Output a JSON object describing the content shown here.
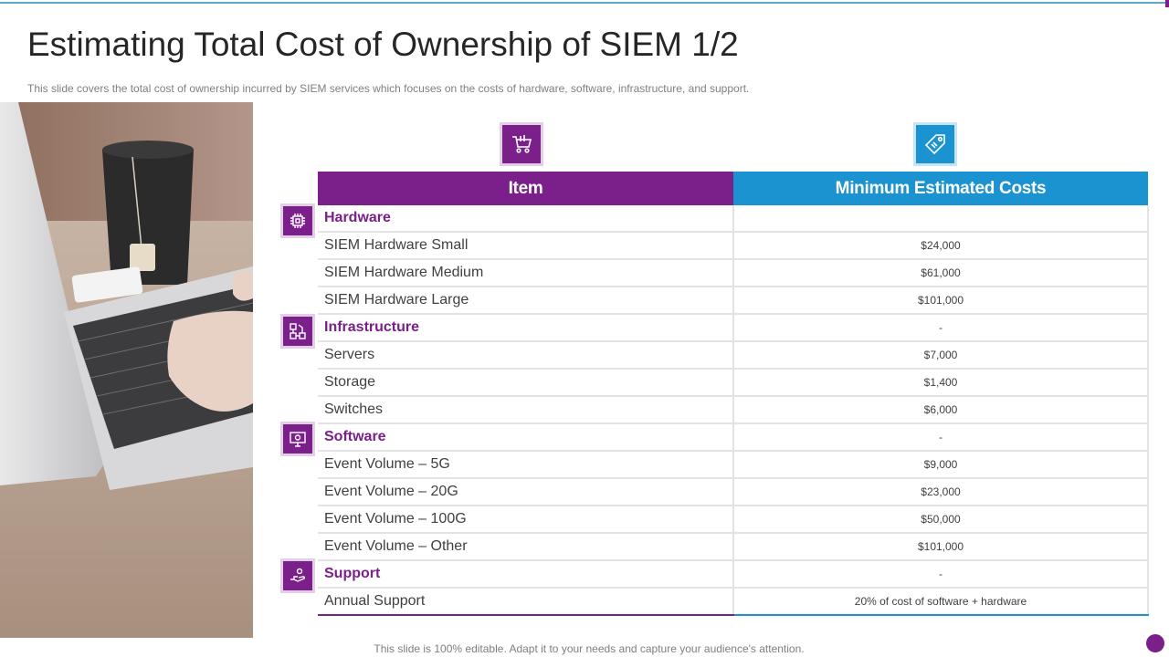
{
  "slide": {
    "title": "Estimating Total Cost of Ownership of SIEM 1/2",
    "subtitle": "This slide covers the total cost of ownership incurred by SIEM services which focuses on the costs of hardware, software, infrastructure, and support.",
    "footer": "This slide is 100% editable. Adapt it to your needs and capture your audience's attention."
  },
  "colors": {
    "purple": "#7b1f8a",
    "blue": "#1c93d1",
    "accent_line": "#5fa8c8"
  },
  "header_icons": [
    "shopping-cart-icon",
    "price-tag-icon"
  ],
  "table": {
    "headers": [
      "Item",
      "Minimum Estimated Costs"
    ],
    "categories": [
      {
        "label": "Hardware",
        "icon": "chip-icon",
        "value": "",
        "rows": [
          {
            "item": "SIEM Hardware Small",
            "cost": "$24,000"
          },
          {
            "item": "SIEM Hardware Medium",
            "cost": "$61,000"
          },
          {
            "item": "SIEM Hardware Large",
            "cost": "$101,000"
          }
        ]
      },
      {
        "label": "Infrastructure",
        "icon": "network-icon",
        "value": "-",
        "rows": [
          {
            "item": "Servers",
            "cost": "$7,000"
          },
          {
            "item": "Storage",
            "cost": "$1,400"
          },
          {
            "item": "Switches",
            "cost": "$6,000"
          }
        ]
      },
      {
        "label": "Software",
        "icon": "monitor-icon",
        "value": "-",
        "rows": [
          {
            "item": "Event Volume – 5G",
            "cost": "$9,000"
          },
          {
            "item": "Event Volume – 20G",
            "cost": "$23,000"
          },
          {
            "item": "Event Volume – 100G",
            "cost": "$50,000"
          },
          {
            "item": "Event Volume – Other",
            "cost": "$101,000"
          }
        ]
      },
      {
        "label": "Support",
        "icon": "hand-support-icon",
        "value": "-",
        "rows": [
          {
            "item": "Annual Support",
            "cost": "20% of cost of software + hardware"
          }
        ]
      }
    ]
  }
}
